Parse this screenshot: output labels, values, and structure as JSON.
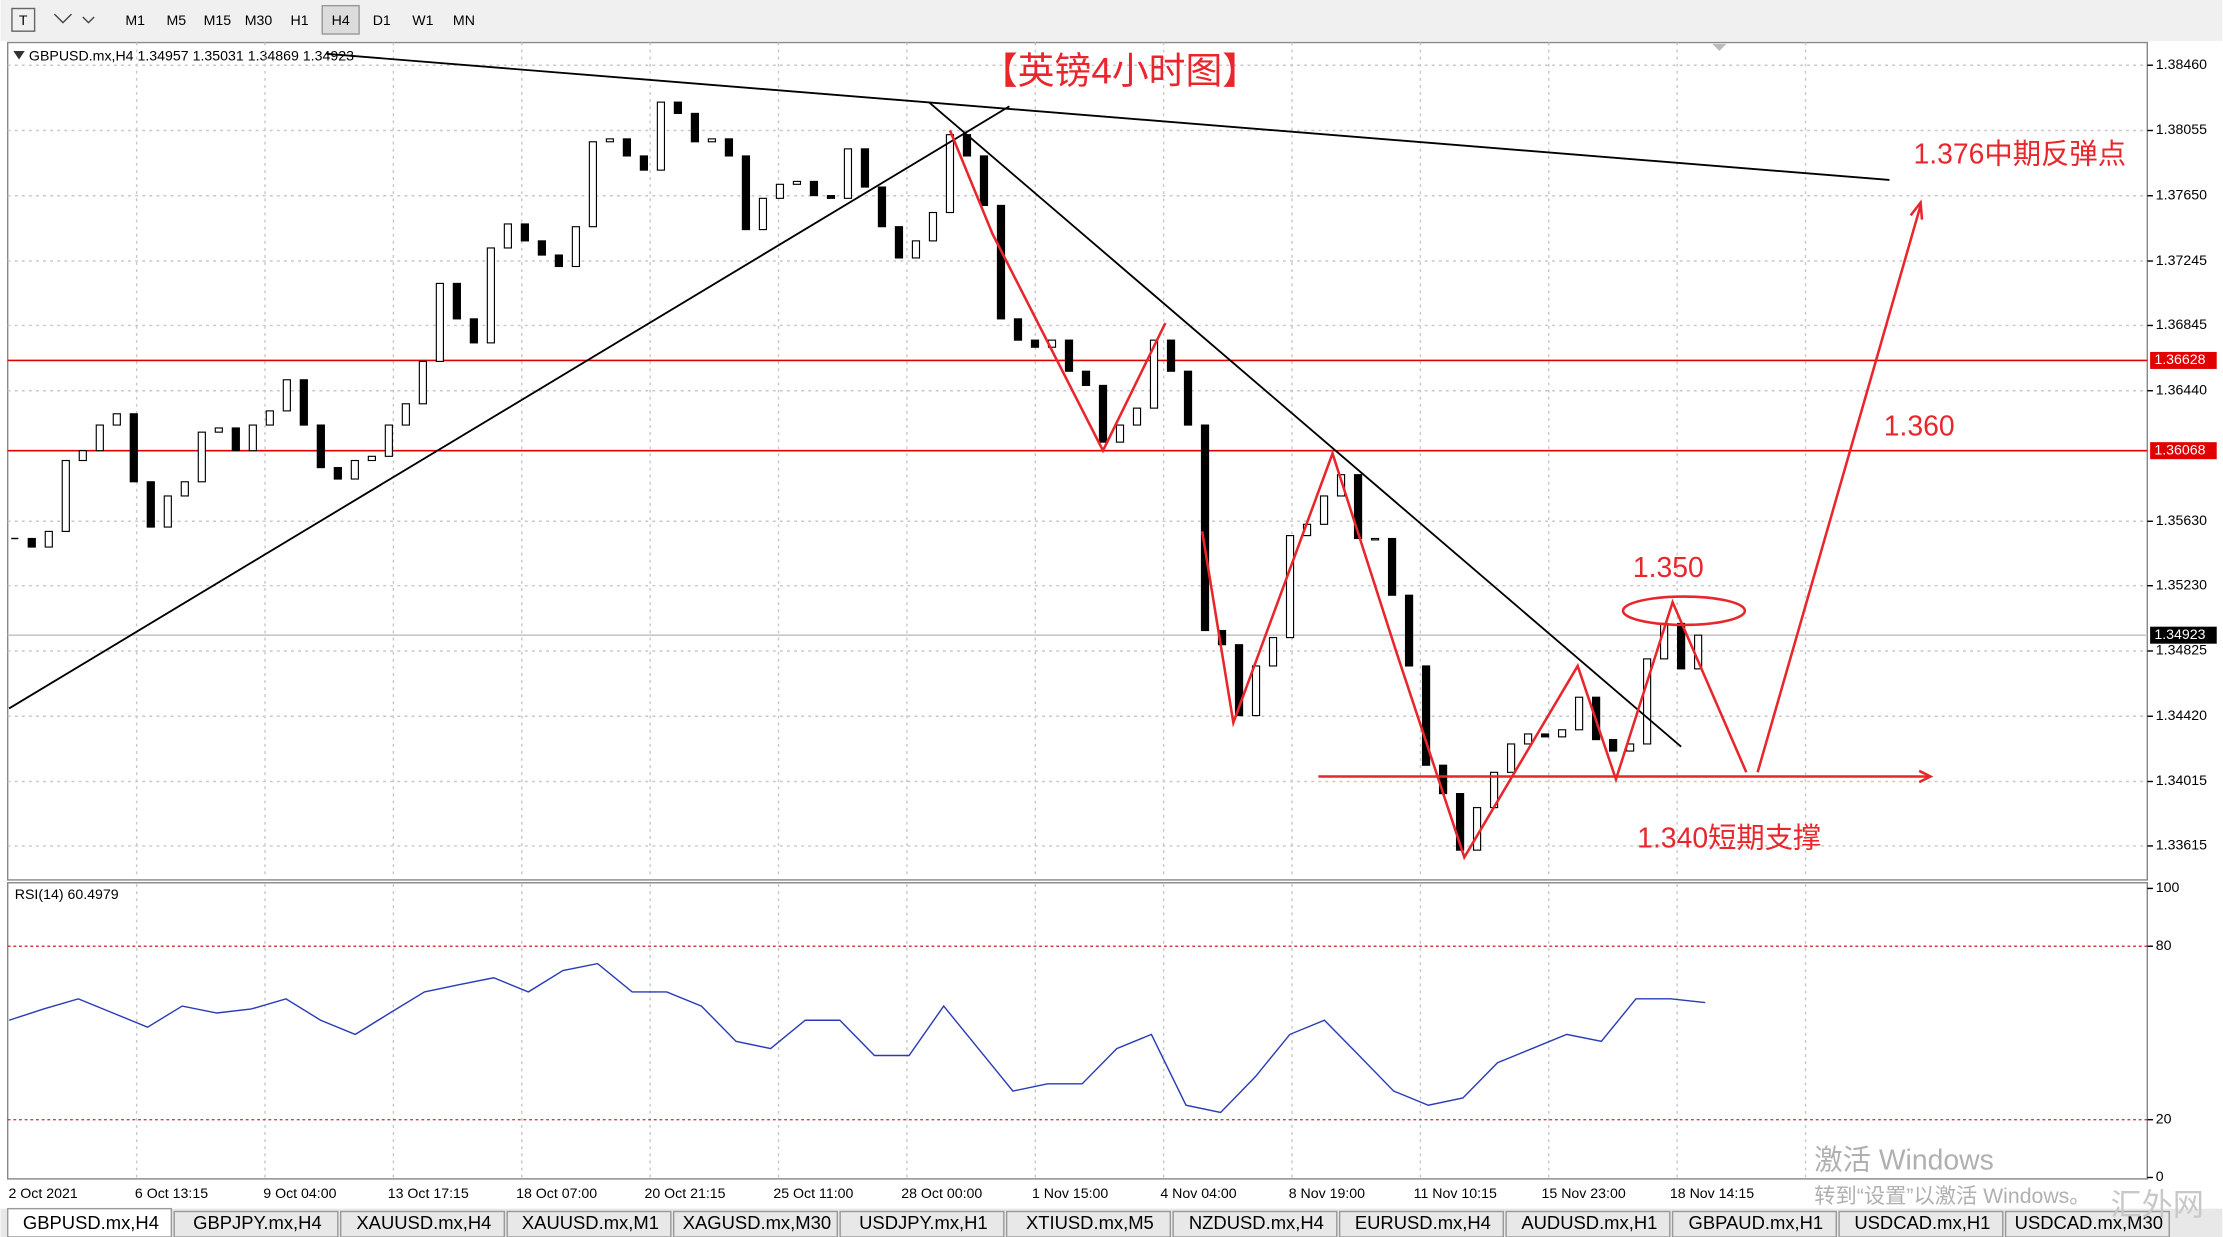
{
  "toolbar": {
    "timeframes": [
      "M1",
      "M5",
      "M15",
      "M30",
      "H1",
      "H4",
      "D1",
      "W1",
      "MN"
    ],
    "selected": "H4"
  },
  "chart_data": {
    "type": "candlestick",
    "info": "GBPUSD.mx,H4  1.34957 1.35031 1.34869 1.34923",
    "title": "【英镑4小时图】",
    "annotations": [
      "1.376中期反弹点",
      "1.360",
      "1.350",
      "1.340短期支撑"
    ],
    "up_color": "#ffffff",
    "down_color": "#000000",
    "closes": [
      1.35523,
      1.3547,
      1.35567,
      1.36007,
      1.36068,
      1.36227,
      1.36297,
      1.35875,
      1.35594,
      1.35787,
      1.35875,
      1.36183,
      1.36209,
      1.36068,
      1.36227,
      1.36315,
      1.36508,
      1.36227,
      1.35963,
      1.35892,
      1.36007,
      1.36033,
      1.36227,
      1.36359,
      1.36622,
      1.37106,
      1.36886,
      1.36737,
      1.37326,
      1.37475,
      1.3737,
      1.37282,
      1.37211,
      1.37458,
      1.37985,
      1.38003,
      1.37897,
      1.37809,
      1.38231,
      1.38161,
      1.37985,
      1.38003,
      1.37897,
      1.3744,
      1.37634,
      1.37721,
      1.37739,
      1.37651,
      1.37634,
      1.37941,
      1.37704,
      1.37458,
      1.37264,
      1.3737,
      1.37546,
      1.38029,
      1.37897,
      1.3759,
      1.36886,
      1.36754,
      1.3671,
      1.36754,
      1.36561,
      1.36473,
      1.36121,
      1.36227,
      1.36332,
      1.36754,
      1.36561,
      1.36227,
      1.34952,
      1.34864,
      1.34424,
      1.34732,
      1.34908,
      1.35541,
      1.35611,
      1.35787,
      1.35919,
      1.35523,
      1.35523,
      1.35171,
      1.34732,
      1.34116,
      1.3394,
      1.33589,
      1.33853,
      1.34072,
      1.34248,
      1.3431,
      1.34292,
      1.34336,
      1.34538,
      1.34275,
      1.34204,
      1.34248,
      1.34776,
      1.34996,
      1.34714,
      1.34923
    ],
    "ylim": [
      1.33413,
      1.38601
    ],
    "yticks": [
      {
        "value": 1.3846,
        "label": "1.38460"
      },
      1.38055,
      {
        "value": 1.3765,
        "label": "1.37650"
      },
      1.37245,
      1.36845,
      {
        "value": 1.3644,
        "label": "1.36440"
      },
      {
        "value": 1.3563,
        "label": "1.35630"
      },
      {
        "value": 1.3523,
        "label": "1.35230"
      },
      1.34825,
      {
        "value": 1.3442,
        "label": "1.34420"
      },
      1.34015,
      1.33615
    ],
    "levels": [
      {
        "value": 1.36628,
        "color": "#e00000",
        "box": "#e00000"
      },
      {
        "value": 1.36068,
        "color": "#e00000",
        "box": "#e00000"
      },
      {
        "value": 1.34923,
        "color": "#c8c8c8",
        "box": "#000000"
      }
    ],
    "x_labels": [
      "2 Oct 2021",
      "6 Oct 13:15",
      "9 Oct 04:00",
      "13 Oct 17:15",
      "18 Oct 07:00",
      "20 Oct 21:15",
      "25 Oct 11:00",
      "28 Oct 00:00",
      "1 Nov 15:00",
      "4 Nov 04:00",
      "8 Nov 19:00",
      "11 Nov 10:15",
      "15 Nov 23:00",
      "18 Nov 14:15"
    ],
    "grid": true,
    "rsi": {
      "label": "RSI(14) 60.4979",
      "color": "#2a3cb5",
      "values": [
        54.4,
        58.3,
        61.8,
        56.9,
        52.0,
        59.3,
        56.9,
        58.3,
        61.8,
        54.4,
        49.5,
        56.9,
        64.2,
        66.7,
        69.1,
        64.2,
        71.6,
        74.0,
        64.2,
        64.2,
        59.3,
        47.1,
        44.6,
        54.4,
        54.4,
        42.2,
        42.2,
        59.3,
        44.6,
        29.9,
        32.4,
        32.4,
        44.6,
        49.5,
        25.0,
        22.5,
        34.8,
        49.5,
        54.4,
        42.2,
        29.9,
        25.0,
        27.5,
        39.7,
        44.6,
        49.5,
        47.1,
        61.8,
        61.8,
        60.5
      ],
      "ylim": [
        0,
        100
      ],
      "yticks": [
        100,
        80,
        20,
        0
      ],
      "levels": [
        80,
        20
      ]
    }
  },
  "tabs": {
    "items": [
      "GBPUSD.mx,H4",
      "GBPJPY.mx,H4",
      "XAUUSD.mx,H4",
      "XAUUSD.mx,M1",
      "XAGUSD.mx,M30",
      "USDJPY.mx,H1",
      "XTIUSD.mx,M5",
      "NZDUSD.mx,H4",
      "EURUSD.mx,H4",
      "AUDUSD.mx,H1",
      "GBPAUD.mx,H1",
      "USDCAD.mx,H1",
      "USDCAD.mx,M30"
    ],
    "selected": "GBPUSD.mx,H4"
  },
  "watermark": {
    "line1": "激活 Windows",
    "line2": "转到“设置”以激活 Windows。",
    "site": "汇外网"
  }
}
